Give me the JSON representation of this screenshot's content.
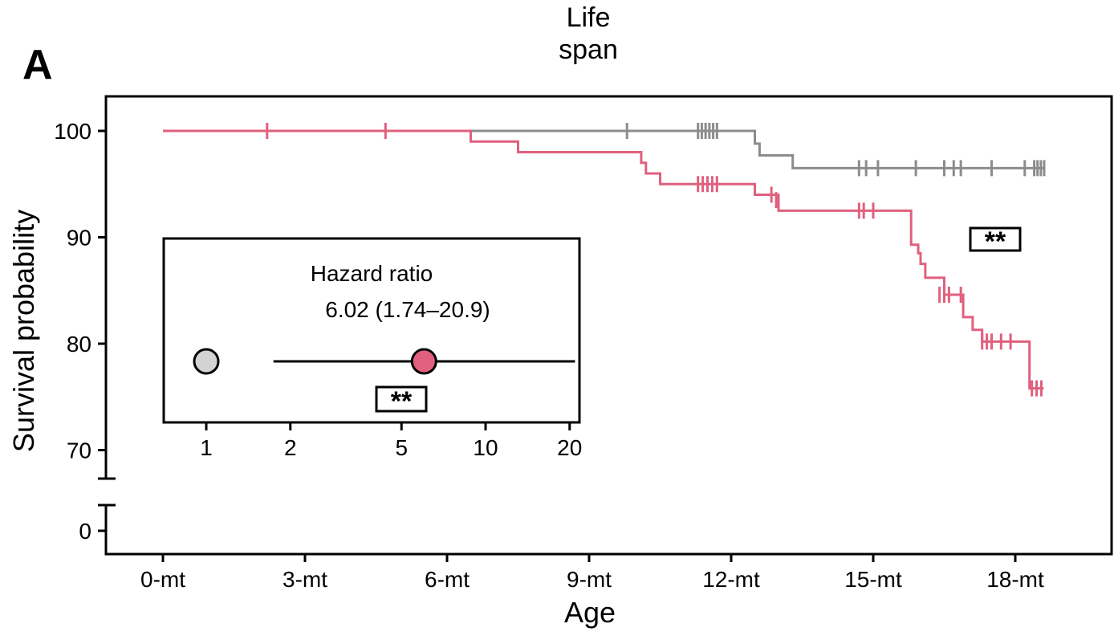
{
  "panel_label": "A",
  "title_line1": "Life",
  "title_line2": "span",
  "significance": "**",
  "colors": {
    "control": "#8c8c8c",
    "treated": "#e0607e",
    "control_point": "#d3d3d3",
    "axis": "#000000"
  },
  "chart_data": [
    {
      "type": "line",
      "subtype": "kaplan-meier step",
      "title": "Life span",
      "xlabel": "Age",
      "ylabel": "Survival probability",
      "x_unit": "months",
      "xlim": [
        0,
        19
      ],
      "x_ticks": [
        0,
        3,
        6,
        9,
        12,
        15,
        18
      ],
      "x_tick_labels": [
        "0-mt",
        "3-mt",
        "6-mt",
        "9-mt",
        "12-mt",
        "15-mt",
        "18-mt"
      ],
      "y_ticks": [
        0,
        70,
        80,
        90,
        100
      ],
      "y_tick_labels": [
        "0",
        "70",
        "80",
        "90",
        "100"
      ],
      "y_axis_break": "between 0 and 70",
      "significance_label": "**",
      "series": [
        {
          "color": "#8c8c8c",
          "steps": [
            [
              0,
              100
            ],
            [
              12.4,
              100
            ],
            [
              12.5,
              98.8
            ],
            [
              12.6,
              97.7
            ],
            [
              13.3,
              97.7
            ],
            [
              13.3,
              96.5
            ],
            [
              18.6,
              96.5
            ]
          ],
          "censor_marks": [
            {
              "x": 9.8,
              "y": 100
            },
            {
              "x": 11.3,
              "y": 100
            },
            {
              "x": 11.38,
              "y": 100
            },
            {
              "x": 11.46,
              "y": 100
            },
            {
              "x": 11.54,
              "y": 100
            },
            {
              "x": 11.62,
              "y": 100
            },
            {
              "x": 11.7,
              "y": 100
            },
            {
              "x": 14.7,
              "y": 96.5
            },
            {
              "x": 14.85,
              "y": 96.5
            },
            {
              "x": 15.1,
              "y": 96.5
            },
            {
              "x": 15.9,
              "y": 96.5
            },
            {
              "x": 16.5,
              "y": 96.5
            },
            {
              "x": 16.7,
              "y": 96.5
            },
            {
              "x": 16.85,
              "y": 96.5
            },
            {
              "x": 17.5,
              "y": 96.5
            },
            {
              "x": 18.2,
              "y": 96.5
            },
            {
              "x": 18.4,
              "y": 96.5
            },
            {
              "x": 18.47,
              "y": 96.5
            },
            {
              "x": 18.54,
              "y": 96.5
            },
            {
              "x": 18.61,
              "y": 96.5
            }
          ]
        },
        {
          "color": "#e0607e",
          "steps": [
            [
              0,
              100
            ],
            [
              6.5,
              100
            ],
            [
              6.5,
              99
            ],
            [
              7.5,
              99
            ],
            [
              7.5,
              98
            ],
            [
              10.0,
              98
            ],
            [
              10.1,
              97
            ],
            [
              10.2,
              96
            ],
            [
              10.5,
              96
            ],
            [
              10.5,
              95
            ],
            [
              12.5,
              95
            ],
            [
              12.5,
              94
            ],
            [
              13.0,
              94
            ],
            [
              13.0,
              92.5
            ],
            [
              15.8,
              92.5
            ],
            [
              15.8,
              89.3
            ],
            [
              15.95,
              88.5
            ],
            [
              16.0,
              87.5
            ],
            [
              16.1,
              86.2
            ],
            [
              16.5,
              86.2
            ],
            [
              16.5,
              84.6
            ],
            [
              16.9,
              84.6
            ],
            [
              16.9,
              82.5
            ],
            [
              17.1,
              82.5
            ],
            [
              17.1,
              81.3
            ],
            [
              17.3,
              81.3
            ],
            [
              17.3,
              80.2
            ],
            [
              18.2,
              80.2
            ],
            [
              18.3,
              75.8
            ],
            [
              18.6,
              75.8
            ]
          ],
          "censor_marks": [
            {
              "x": 2.2,
              "y": 100
            },
            {
              "x": 4.7,
              "y": 100
            },
            {
              "x": 11.3,
              "y": 95
            },
            {
              "x": 11.4,
              "y": 95
            },
            {
              "x": 11.5,
              "y": 95
            },
            {
              "x": 11.6,
              "y": 95
            },
            {
              "x": 11.7,
              "y": 95
            },
            {
              "x": 12.85,
              "y": 94
            },
            {
              "x": 12.95,
              "y": 93.5
            },
            {
              "x": 14.7,
              "y": 92.5
            },
            {
              "x": 14.8,
              "y": 92.5
            },
            {
              "x": 15.0,
              "y": 92.5
            },
            {
              "x": 16.4,
              "y": 84.6
            },
            {
              "x": 16.5,
              "y": 84.6
            },
            {
              "x": 16.6,
              "y": 84.6
            },
            {
              "x": 16.85,
              "y": 84.6
            },
            {
              "x": 17.3,
              "y": 80.2
            },
            {
              "x": 17.4,
              "y": 80.2
            },
            {
              "x": 17.5,
              "y": 80.2
            },
            {
              "x": 17.7,
              "y": 80.2
            },
            {
              "x": 17.9,
              "y": 80.2
            },
            {
              "x": 18.35,
              "y": 75.8
            },
            {
              "x": 18.45,
              "y": 75.8
            },
            {
              "x": 18.55,
              "y": 75.8
            }
          ]
        }
      ]
    },
    {
      "type": "scatter",
      "subtype": "forest plot (inset)",
      "title": "Hazard ratio",
      "subtitle": "6.02 (1.74–20.9)",
      "x_scale": "log",
      "xlim": [
        0.7,
        30
      ],
      "x_ticks": [
        1,
        2,
        5,
        10,
        20
      ],
      "x_tick_labels": [
        "1",
        "2",
        "5",
        "10",
        "20"
      ],
      "reference": {
        "value": 1,
        "color": "#d3d3d3"
      },
      "estimate": {
        "value": 6.02,
        "ci_low": 1.74,
        "ci_high": 20.9,
        "color": "#e0607e"
      },
      "significance_label": "**"
    }
  ]
}
